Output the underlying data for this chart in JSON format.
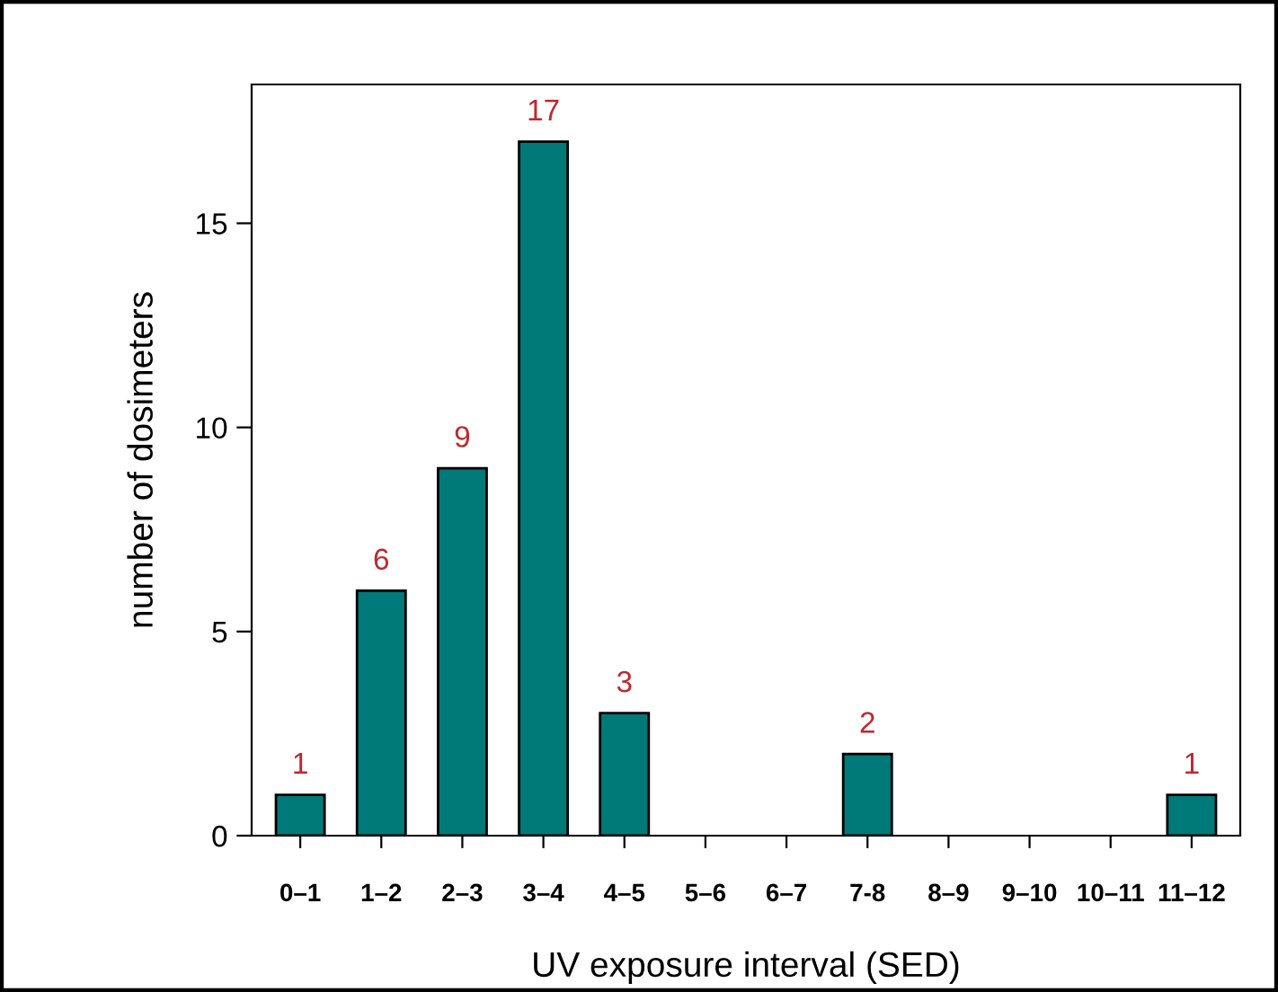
{
  "chart_data": {
    "type": "bar",
    "xlabel": "UV exposure interval (SED)",
    "ylabel": "number of dosimeters",
    "categories": [
      "0–1",
      "1–2",
      "2–3",
      "3–4",
      "4–5",
      "5–6",
      "6–7",
      "7-8",
      "8–9",
      "9–10",
      "10–11",
      "11–12"
    ],
    "values": [
      1,
      6,
      9,
      17,
      3,
      0,
      0,
      2,
      0,
      0,
      0,
      1
    ],
    "value_labels": [
      "1",
      "6",
      "9",
      "17",
      "3",
      null,
      null,
      "2",
      null,
      null,
      null,
      "1"
    ],
    "color": "#007a78",
    "ylim": [
      0,
      18.4
    ],
    "yticks": [
      0,
      5,
      10,
      15
    ],
    "grid": false,
    "legend": false
  }
}
